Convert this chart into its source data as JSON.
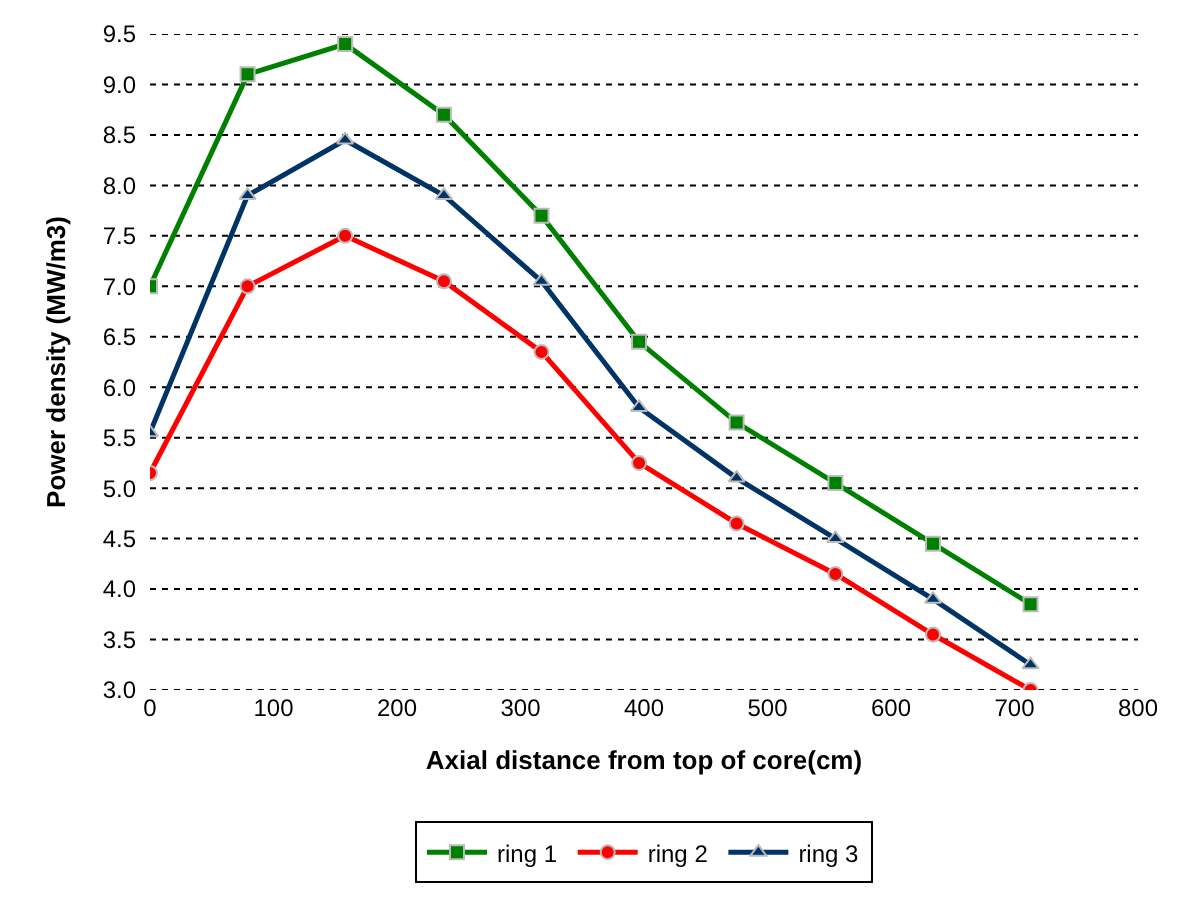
{
  "chart_data": {
    "type": "line",
    "xlabel": "Axial distance from top of core(cm)",
    "ylabel": "Power density (MW/m3)",
    "x": [
      0,
      79,
      158,
      238,
      317,
      396,
      475,
      555,
      634,
      713
    ],
    "series": [
      {
        "name": "ring 1",
        "color": "#008000",
        "marker": "square",
        "values": [
          7.0,
          9.1,
          9.4,
          8.7,
          7.7,
          6.45,
          5.65,
          5.05,
          4.45,
          3.85
        ]
      },
      {
        "name": "ring 2",
        "color": "#ff0000",
        "marker": "circle",
        "values": [
          5.15,
          7.0,
          7.5,
          7.05,
          6.35,
          5.25,
          4.65,
          4.15,
          3.55,
          3.0
        ]
      },
      {
        "name": "ring 3",
        "color": "#003366",
        "marker": "triangle",
        "values": [
          5.55,
          7.9,
          8.45,
          7.9,
          7.05,
          5.8,
          5.1,
          4.5,
          3.9,
          3.25
        ]
      }
    ],
    "xlim": [
      0,
      800
    ],
    "xticks": [
      0,
      100,
      200,
      300,
      400,
      500,
      600,
      700,
      800
    ],
    "ylim": [
      3.0,
      9.5
    ],
    "yticks": [
      {
        "value": 3.0,
        "label": "3.0"
      },
      {
        "value": 3.5,
        "label": "3.5"
      },
      {
        "value": 4.0,
        "label": "4.0"
      },
      {
        "value": 4.5,
        "label": "4.5"
      },
      {
        "value": 5.0,
        "label": "5.0"
      },
      {
        "value": 5.5,
        "label": "5.5"
      },
      {
        "value": 6.0,
        "label": "6.0"
      },
      {
        "value": 6.5,
        "label": "6.5"
      },
      {
        "value": 7.0,
        "label": "7.0"
      },
      {
        "value": 7.5,
        "label": "7.5"
      },
      {
        "value": 8.0,
        "label": "8.0"
      },
      {
        "value": 8.5,
        "label": "8.5"
      },
      {
        "value": 9.0,
        "label": "9.0"
      },
      {
        "value": 9.5,
        "label": "9.5"
      }
    ],
    "grid": "y",
    "legend": "bottom"
  }
}
